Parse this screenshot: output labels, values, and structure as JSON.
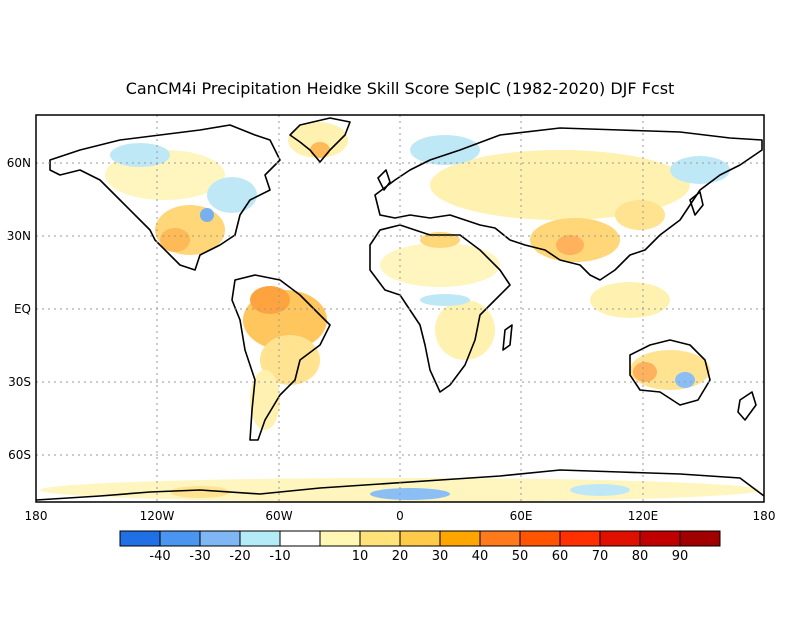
{
  "title": "CanCM4i Precipitation Heidke Skill Score SepIC (1982-2020) DJF Fcst",
  "lat_labels": [
    "60N",
    "30N",
    "EQ",
    "30S",
    "60S"
  ],
  "lon_labels": [
    "180",
    "120W",
    "60W",
    "0",
    "60E",
    "120E",
    "180"
  ],
  "colorbar": {
    "colors": [
      "#1f6fe5",
      "#4a95f0",
      "#7fb7f5",
      "#b3ecf7",
      "#ffffff",
      "#fff7b3",
      "#ffe27a",
      "#ffc94a",
      "#ffa500",
      "#ff7a1a",
      "#ff5500",
      "#ff3000",
      "#e01000",
      "#c00000",
      "#a00000"
    ],
    "labels": [
      "-40",
      "-30",
      "-20",
      "-10",
      "10",
      "20",
      "30",
      "40",
      "50",
      "60",
      "70",
      "80",
      "90"
    ]
  }
}
